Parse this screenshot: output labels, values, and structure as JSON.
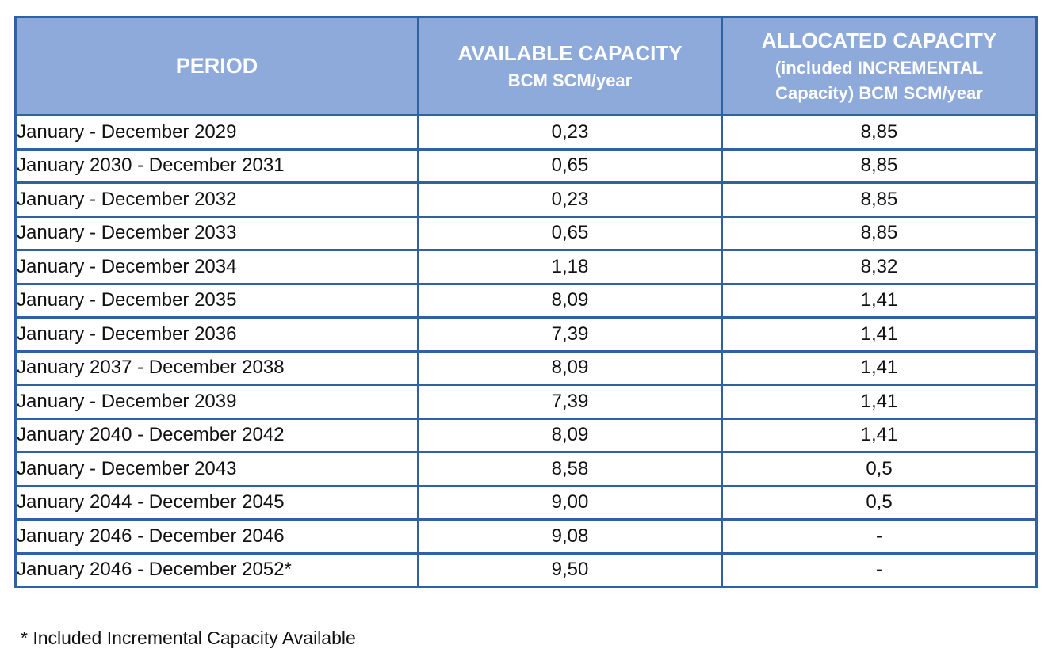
{
  "table": {
    "headers": {
      "period": "PERIOD",
      "available_title": "AVAILABLE CAPACITY",
      "available_unit": "BCM SCM/year",
      "allocated_title": "ALLOCATED CAPACITY",
      "allocated_line2": "(included INCREMENTAL",
      "allocated_line3": "Capacity) BCM SCM/year"
    },
    "rows": [
      {
        "period": "January - December 2029",
        "available": "0,23",
        "allocated": "8,85"
      },
      {
        "period": "January 2030 - December 2031",
        "available": "0,65",
        "allocated": "8,85"
      },
      {
        "period": "January - December 2032",
        "available": "0,23",
        "allocated": "8,85"
      },
      {
        "period": "January - December 2033",
        "available": "0,65",
        "allocated": "8,85"
      },
      {
        "period": "January - December 2034",
        "available": "1,18",
        "allocated": "8,32"
      },
      {
        "period": "January - December 2035",
        "available": "8,09",
        "allocated": "1,41"
      },
      {
        "period": "January - December 2036",
        "available": "7,39",
        "allocated": "1,41"
      },
      {
        "period": "January 2037 - December 2038",
        "available": "8,09",
        "allocated": "1,41"
      },
      {
        "period": "January - December 2039",
        "available": "7,39",
        "allocated": "1,41"
      },
      {
        "period": "January 2040 - December 2042",
        "available": "8,09",
        "allocated": "1,41"
      },
      {
        "period": "January - December 2043",
        "available": "8,58",
        "allocated": "0,5"
      },
      {
        "period": "January 2044 - December 2045",
        "available": "9,00",
        "allocated": "0,5"
      },
      {
        "period": "January 2046 - December 2046",
        "available": "9,08",
        "allocated": "-"
      },
      {
        "period": "January 2046 - December 2052*",
        "available": "9,50",
        "allocated": "-"
      }
    ]
  },
  "footnote": "* Included Incremental Capacity Available",
  "colors": {
    "header_bg": "#8eaadb",
    "header_text": "#ffffff",
    "border": "#2e62a3"
  }
}
